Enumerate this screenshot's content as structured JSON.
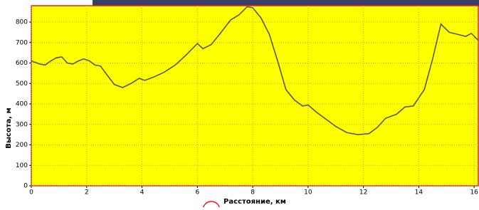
{
  "chart_data": {
    "type": "line",
    "x_label": "Расстояние, км",
    "y_label": "Высота, м",
    "xlim": [
      0,
      16.15
    ],
    "ylim": [
      0,
      880
    ],
    "xticks": [
      0,
      2,
      4,
      6,
      8,
      10,
      12,
      14,
      16
    ],
    "yticks": [
      0,
      100,
      200,
      300,
      400,
      500,
      600,
      700,
      800
    ],
    "grid": true,
    "background": "#ffff00",
    "series": [
      {
        "color": "#5a5a1e",
        "x": [
          0,
          0.3,
          0.5,
          0.7,
          0.9,
          1.1,
          1.3,
          1.5,
          1.7,
          1.9,
          2.1,
          2.3,
          2.5,
          2.8,
          3.0,
          3.3,
          3.6,
          3.9,
          4.1,
          4.4,
          4.8,
          5.2,
          5.6,
          6.0,
          6.2,
          6.5,
          6.8,
          7.2,
          7.5,
          7.8,
          8.0,
          8.3,
          8.6,
          8.9,
          9.2,
          9.5,
          9.8,
          10.0,
          10.3,
          10.6,
          11.0,
          11.4,
          11.8,
          12.2,
          12.5,
          12.8,
          13.2,
          13.5,
          13.8,
          14.2,
          14.5,
          14.8,
          15.1,
          15.4,
          15.7,
          15.9,
          16.15
        ],
        "values": [
          610,
          595,
          590,
          610,
          625,
          630,
          600,
          595,
          610,
          620,
          610,
          590,
          585,
          530,
          495,
          480,
          500,
          525,
          515,
          530,
          555,
          590,
          640,
          695,
          670,
          690,
          740,
          810,
          835,
          875,
          870,
          820,
          740,
          610,
          470,
          420,
          390,
          395,
          360,
          330,
          290,
          260,
          250,
          255,
          285,
          330,
          350,
          385,
          390,
          470,
          620,
          790,
          750,
          740,
          730,
          745,
          710
        ]
      }
    ]
  }
}
